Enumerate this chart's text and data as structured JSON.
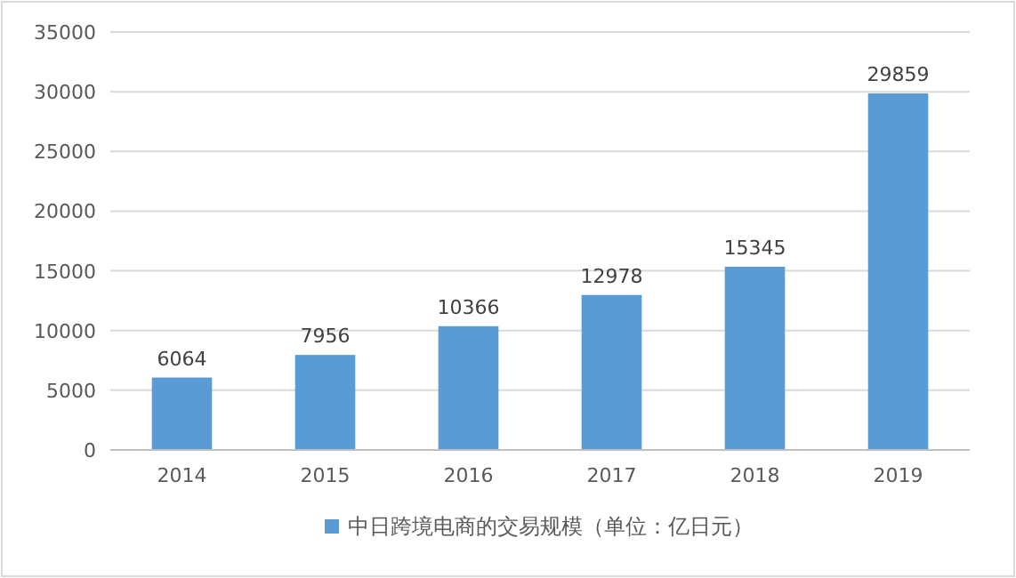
{
  "chart_data": {
    "type": "bar",
    "categories": [
      "2014",
      "2015",
      "2016",
      "2017",
      "2018",
      "2019"
    ],
    "series": [
      {
        "name": "中日跨境电商的交易规模（单位：亿日元）",
        "color": "#5b9bd5",
        "values": [
          6064,
          7956,
          10366,
          12978,
          15345,
          29859
        ]
      }
    ],
    "ylim": [
      0,
      35000
    ],
    "yticks": [
      0,
      5000,
      10000,
      15000,
      20000,
      25000,
      30000,
      35000
    ],
    "grid": "y",
    "legend": "bottom",
    "data_labels": true
  }
}
